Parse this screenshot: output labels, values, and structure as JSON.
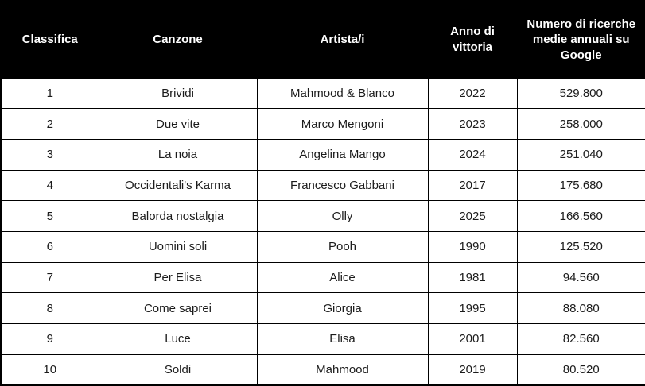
{
  "table": {
    "columns": [
      {
        "key": "classifica",
        "label": "Classifica"
      },
      {
        "key": "canzone",
        "label": "Canzone"
      },
      {
        "key": "artista",
        "label": "Artista/i"
      },
      {
        "key": "anno",
        "label": "Anno di vittoria"
      },
      {
        "key": "ricerche",
        "label": "Numero di ricerche medie annuali su Google"
      }
    ],
    "rows": [
      [
        "1",
        "Brividi",
        "Mahmood & Blanco",
        "2022",
        "529.800"
      ],
      [
        "2",
        "Due vite",
        "Marco Mengoni",
        "2023",
        "258.000"
      ],
      [
        "3",
        "La noia",
        "Angelina Mango",
        "2024",
        "251.040"
      ],
      [
        "4",
        "Occidentali's Karma",
        "Francesco Gabbani",
        "2017",
        "175.680"
      ],
      [
        "5",
        "Balorda nostalgia",
        "Olly",
        "2025",
        "166.560"
      ],
      [
        "6",
        "Uomini soli",
        "Pooh",
        "1990",
        "125.520"
      ],
      [
        "7",
        "Per Elisa",
        "Alice",
        "1981",
        "94.560"
      ],
      [
        "8",
        "Come saprei",
        "Giorgia",
        "1995",
        "88.080"
      ],
      [
        "9",
        "Luce",
        "Elisa",
        "2001",
        "82.560"
      ],
      [
        "10",
        "Soldi",
        "Mahmood",
        "2019",
        "80.520"
      ]
    ]
  },
  "colors": {
    "header_bg": "#000000",
    "header_text": "#ffffff",
    "body_text": "#1b1b1b",
    "border": "#000000",
    "row_bg": "#ffffff"
  },
  "chart_data": {
    "type": "table",
    "title": "",
    "columns": [
      "Classifica",
      "Canzone",
      "Artista/i",
      "Anno di vittoria",
      "Numero di ricerche medie annuali su Google"
    ],
    "rows": [
      [
        "1",
        "Brividi",
        "Mahmood & Blanco",
        "2022",
        "529.800"
      ],
      [
        "2",
        "Due vite",
        "Marco Mengoni",
        "2023",
        "258.000"
      ],
      [
        "3",
        "La noia",
        "Angelina Mango",
        "2024",
        "251.040"
      ],
      [
        "4",
        "Occidentali's Karma",
        "Francesco Gabbani",
        "2017",
        "175.680"
      ],
      [
        "5",
        "Balorda nostalgia",
        "Olly",
        "2025",
        "166.560"
      ],
      [
        "6",
        "Uomini soli",
        "Pooh",
        "1990",
        "125.520"
      ],
      [
        "7",
        "Per Elisa",
        "Alice",
        "1981",
        "94.560"
      ],
      [
        "8",
        "Come saprei",
        "Giorgia",
        "1995",
        "88.080"
      ],
      [
        "9",
        "Luce",
        "Elisa",
        "2001",
        "82.560"
      ],
      [
        "10",
        "Soldi",
        "Mahmood",
        "2019",
        "80.520"
      ]
    ]
  }
}
